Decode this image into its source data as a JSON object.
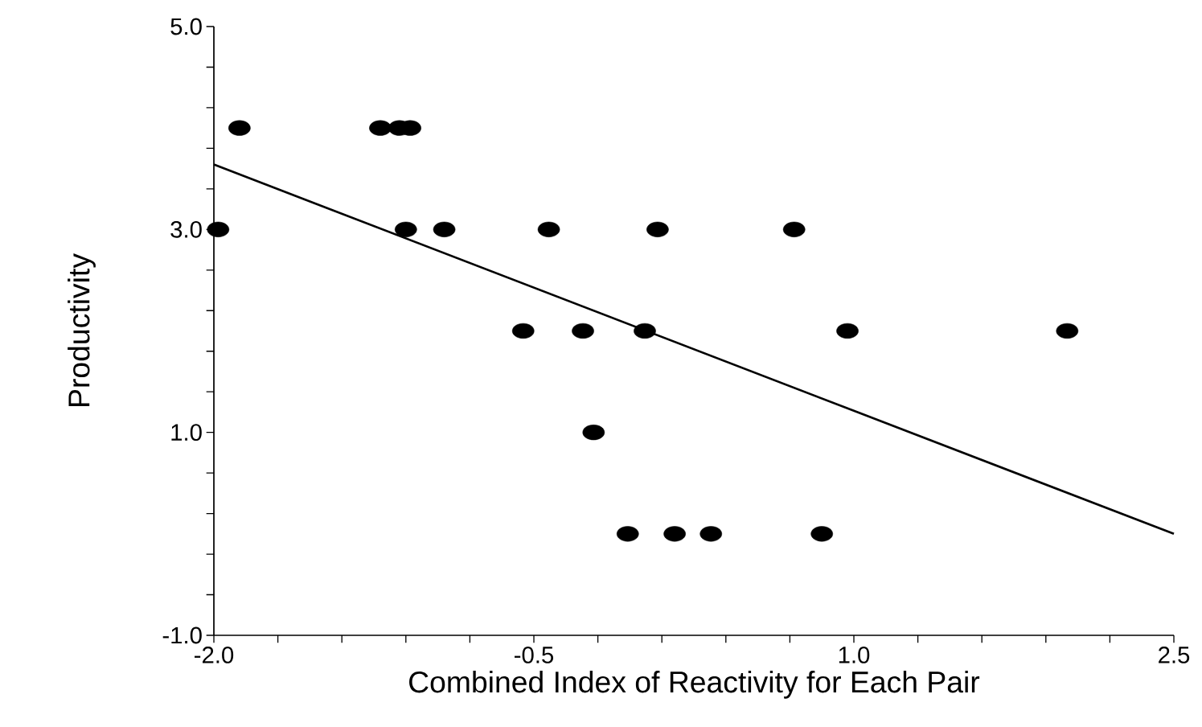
{
  "chart_data": {
    "type": "scatter",
    "xlabel": "Combined Index of Reactivity for Each Pair",
    "ylabel": "Productivity",
    "xlim": [
      -2.0,
      2.5
    ],
    "ylim": [
      -1.0,
      5.0
    ],
    "xticks": [
      {
        "value": -2.0,
        "label": "-2.0"
      },
      {
        "value": -1.7,
        "label": null
      },
      {
        "value": -1.4,
        "label": null
      },
      {
        "value": -1.1,
        "label": null
      },
      {
        "value": -0.8,
        "label": null
      },
      {
        "value": -0.5,
        "label": "-0.5"
      },
      {
        "value": -0.2,
        "label": null
      },
      {
        "value": 0.1,
        "label": null
      },
      {
        "value": 0.4,
        "label": null
      },
      {
        "value": 0.7,
        "label": null
      },
      {
        "value": 1.0,
        "label": "1.0"
      },
      {
        "value": 1.3,
        "label": null
      },
      {
        "value": 1.6,
        "label": null
      },
      {
        "value": 1.9,
        "label": null
      },
      {
        "value": 2.2,
        "label": null
      },
      {
        "value": 2.5,
        "label": "2.5"
      }
    ],
    "yticks": [
      {
        "value": -1.0,
        "label": "-1.0"
      },
      {
        "value": -0.6,
        "label": null
      },
      {
        "value": -0.2,
        "label": null
      },
      {
        "value": 0.2,
        "label": null
      },
      {
        "value": 0.6,
        "label": null
      },
      {
        "value": 1.0,
        "label": "1.0"
      },
      {
        "value": 1.4,
        "label": null
      },
      {
        "value": 1.8,
        "label": null
      },
      {
        "value": 2.2,
        "label": null
      },
      {
        "value": 2.6,
        "label": null
      },
      {
        "value": 3.0,
        "label": "3.0"
      },
      {
        "value": 3.4,
        "label": null
      },
      {
        "value": 3.8,
        "label": null
      },
      {
        "value": 4.2,
        "label": null
      },
      {
        "value": 4.6,
        "label": null
      },
      {
        "value": 5.0,
        "label": "5.0"
      }
    ],
    "marker": "circle",
    "series": [
      {
        "color": "#000000",
        "x": [
          -1.88,
          -1.98,
          -1.22,
          -1.13,
          -1.08,
          -1.1,
          -0.92,
          -0.55,
          -0.43,
          -0.27,
          -0.22,
          -0.06,
          0.02,
          0.08,
          0.16,
          0.33,
          0.72,
          0.85,
          0.97,
          2.0
        ],
        "values": [
          4,
          3,
          4,
          4,
          4,
          3,
          3,
          2,
          3,
          2,
          1,
          0,
          2,
          3,
          0,
          0,
          3,
          0,
          2,
          2
        ]
      },
      {
        "type": "line",
        "marker": "none",
        "color": "#000000",
        "x": [
          -2.0,
          2.5
        ],
        "values": [
          3.64,
          0.0
        ]
      }
    ]
  }
}
